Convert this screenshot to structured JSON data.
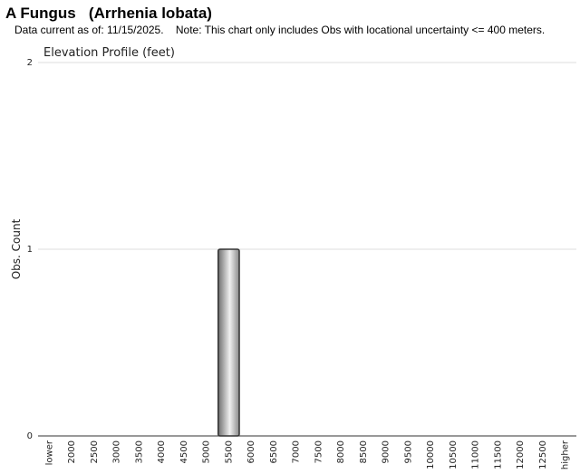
{
  "header": {
    "title": "A Fungus   (Arrhenia lobata)",
    "subtitle": "Data current as of: 11/15/2025.    Note: This chart only includes Obs with locational uncertainty <= 400 meters."
  },
  "chart_data": {
    "type": "bar",
    "title": "Elevation Profile (feet)",
    "y_label": "Obs. Count",
    "categories": [
      "lower",
      "2000",
      "2500",
      "3000",
      "3500",
      "4000",
      "4500",
      "5000",
      "5500",
      "6000",
      "6500",
      "7000",
      "7500",
      "8000",
      "8500",
      "9000",
      "9500",
      "10000",
      "10500",
      "11000",
      "11500",
      "12000",
      "12500",
      "higher"
    ],
    "values": [
      0,
      0,
      0,
      0,
      0,
      0,
      0,
      0,
      1,
      0,
      0,
      0,
      0,
      0,
      0,
      0,
      0,
      0,
      0,
      0,
      0,
      0,
      0,
      0
    ],
    "color": "#a8a8a8",
    "ylim": [
      0,
      2
    ],
    "yticks": [
      0,
      1,
      2
    ],
    "grid": true
  }
}
